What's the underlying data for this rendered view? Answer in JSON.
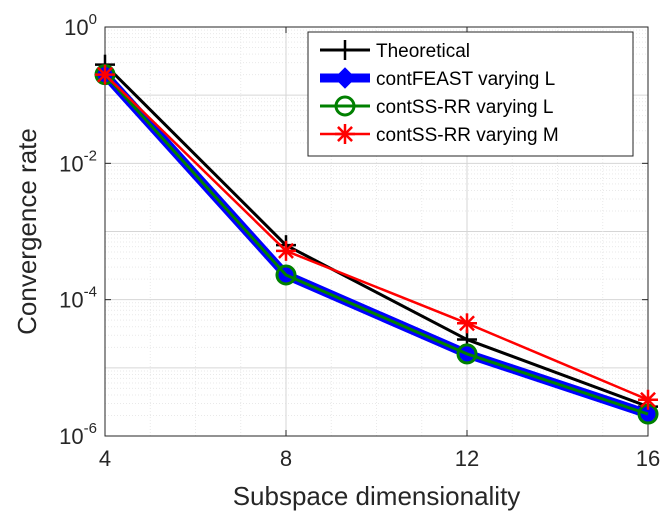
{
  "chart_data": {
    "type": "line",
    "yscale": "log",
    "xlabel": "Subspace dimensionality",
    "ylabel": "Convergence rate",
    "xlim": [
      4,
      16
    ],
    "ylim": [
      1e-06,
      1
    ],
    "xticks": [
      4,
      8,
      12,
      16
    ],
    "yticks": [
      {
        "value": 1e-06,
        "base": "10",
        "exp": "-6"
      },
      {
        "value": 0.0001,
        "base": "10",
        "exp": "-4"
      },
      {
        "value": 0.01,
        "base": "10",
        "exp": "-2"
      },
      {
        "value": 1,
        "base": "10",
        "exp": "0"
      }
    ],
    "grid": true,
    "legend_position": "top-right",
    "x": [
      4,
      8,
      12,
      16
    ],
    "series": [
      {
        "name": "Theoretical",
        "color": "#000000",
        "marker": "plus",
        "values": [
          0.28,
          0.00063,
          2.6e-05,
          2.7e-06
        ]
      },
      {
        "name": "contFEAST varying L",
        "color": "#0000ff",
        "marker": "diamond",
        "values": [
          0.2,
          0.00023,
          1.6e-05,
          2.1e-06
        ]
      },
      {
        "name": "contSS-RR varying L",
        "color": "#008000",
        "marker": "circle",
        "values": [
          0.2,
          0.00023,
          1.6e-05,
          2.1e-06
        ]
      },
      {
        "name": "contSS-RR varying M",
        "color": "#ff0000",
        "marker": "asterisk",
        "values": [
          0.2,
          0.00052,
          4.5e-05,
          3.4e-06
        ]
      }
    ]
  }
}
